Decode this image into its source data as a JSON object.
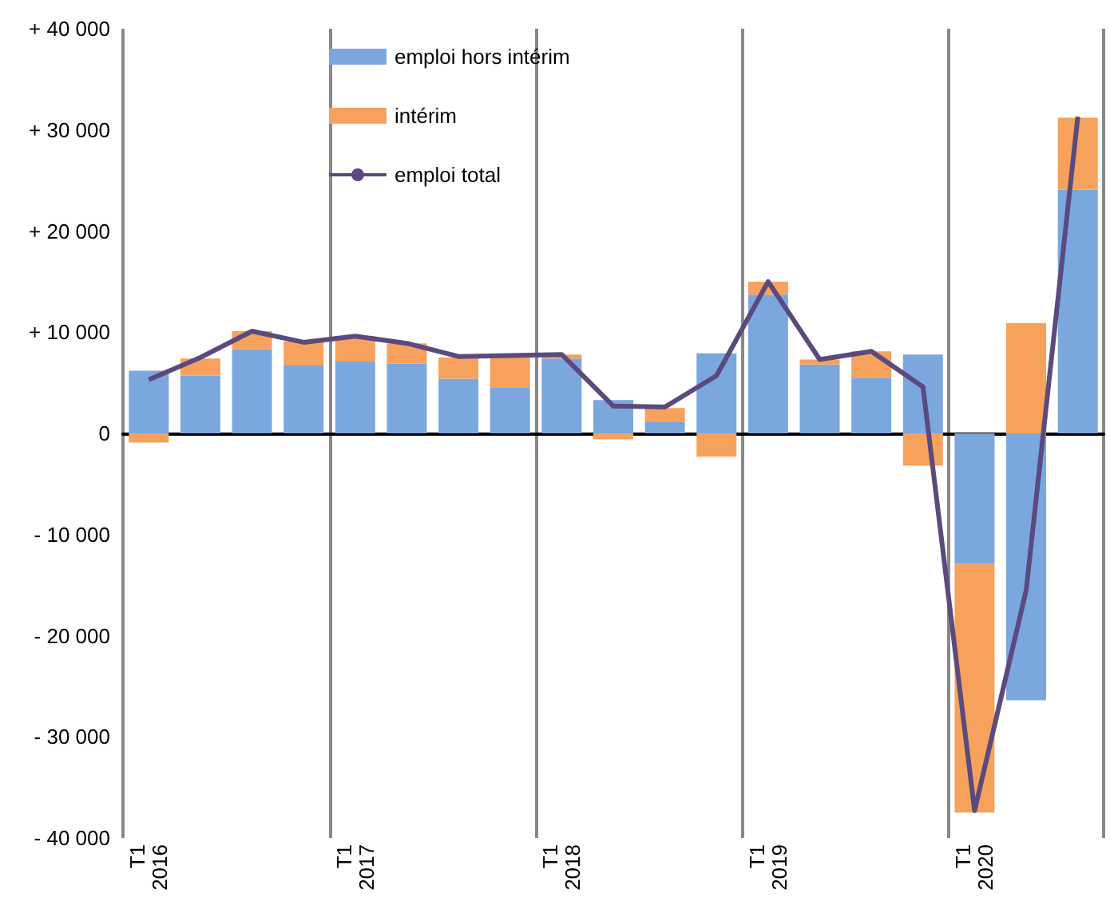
{
  "chart_data": {
    "type": "bar",
    "stacked": true,
    "categories": [
      "T1 2016",
      null,
      null,
      null,
      "T1 2017",
      null,
      null,
      null,
      "T1 2018",
      null,
      null,
      null,
      "T1 2019",
      null,
      null,
      null,
      "T1 2020",
      null,
      null
    ],
    "series": [
      {
        "name": "emploi hors intérim",
        "color": "#7ba7df",
        "values": [
          6200,
          5700,
          8300,
          6700,
          7100,
          6900,
          5400,
          4500,
          7400,
          3300,
          1100,
          7900,
          13700,
          6800,
          5500,
          7800,
          -12900,
          -26400,
          24100
        ]
      },
      {
        "name": "intérim",
        "color": "#f7a25c",
        "values": [
          -900,
          1700,
          1800,
          2400,
          2500,
          2000,
          2100,
          3100,
          400,
          -600,
          1400,
          -2300,
          1300,
          500,
          2600,
          -3200,
          -24600,
          10900,
          7100
        ]
      },
      {
        "name": "emploi total",
        "type": "line",
        "color": "#5b4a7e",
        "values": [
          5300,
          7500,
          10100,
          9000,
          9600,
          8900,
          7600,
          7700,
          7800,
          2700,
          2600,
          5700,
          15000,
          7300,
          8100,
          4600,
          -37300,
          -15500,
          31300
        ]
      }
    ],
    "ylim": [
      -40000,
      40000
    ],
    "yticks": [
      {
        "value": -40000,
        "label": "- 40 000"
      },
      {
        "value": -30000,
        "label": "- 30 000"
      },
      {
        "value": -20000,
        "label": "- 20 000"
      },
      {
        "value": -10000,
        "label": "- 10 000"
      },
      {
        "value": 0,
        "label": "0"
      },
      {
        "value": 10000,
        "label": "+ 10 000"
      },
      {
        "value": 20000,
        "label": "+ 20 000"
      },
      {
        "value": 30000,
        "label": "+ 30 000"
      },
      {
        "value": 40000,
        "label": "+ 40 000"
      }
    ],
    "grid": "x",
    "legend": "top",
    "marker": "none",
    "line_style": "solid"
  }
}
